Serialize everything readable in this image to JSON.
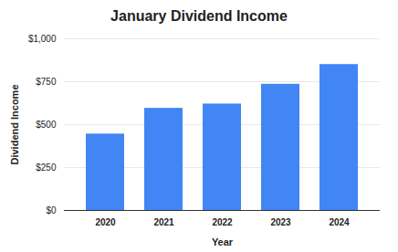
{
  "chart_data": {
    "type": "bar",
    "title": "January Dividend Income",
    "x_label": "Year",
    "y_label": "Dividend Income",
    "categories": [
      "2020",
      "2021",
      "2022",
      "2023",
      "2024"
    ],
    "values": [
      445,
      595,
      620,
      735,
      850
    ],
    "color": "#4285f4",
    "ylim": [
      0,
      1000
    ],
    "yticks": [
      {
        "value": 0,
        "label": "$0"
      },
      {
        "value": 250,
        "label": "$250"
      },
      {
        "value": 500,
        "label": "$500"
      },
      {
        "value": 750,
        "label": "$750"
      },
      {
        "value": 1000,
        "label": "$1,000"
      }
    ],
    "grid": true
  }
}
